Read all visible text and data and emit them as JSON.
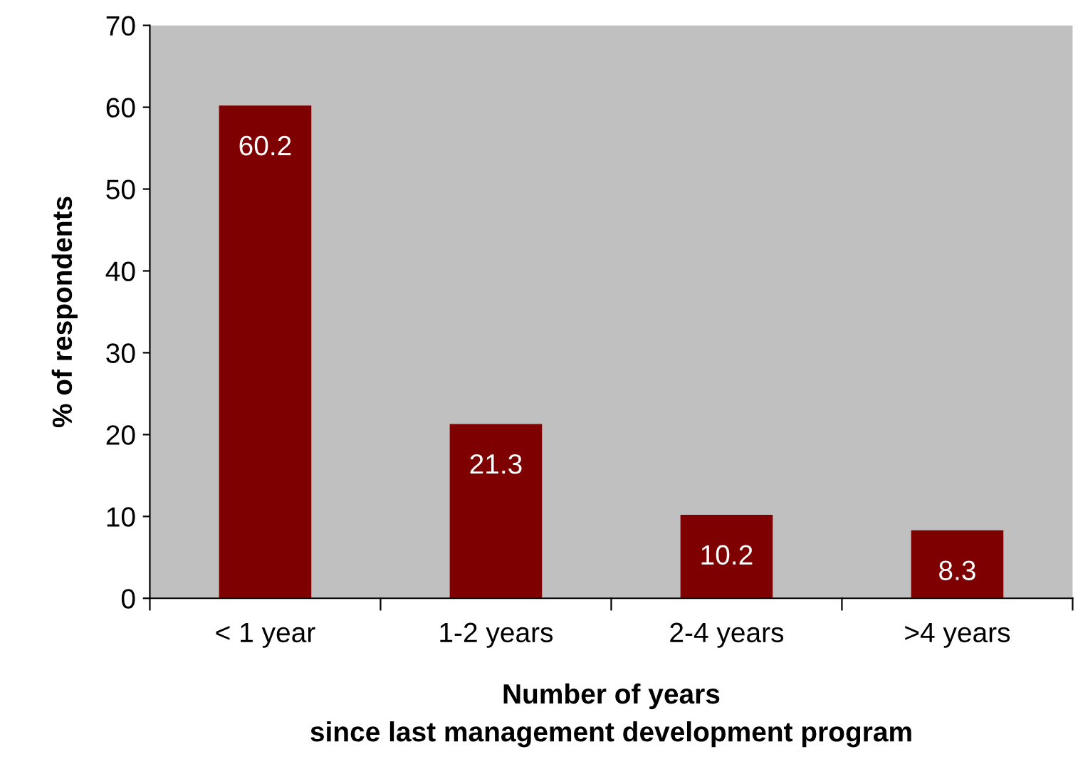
{
  "chart_data": {
    "type": "bar",
    "categories": [
      "< 1 year",
      "1-2 years",
      "2-4 years",
      ">4 years"
    ],
    "values": [
      60.2,
      21.3,
      10.2,
      8.3
    ],
    "color": "#7f0000",
    "ylabel": "% of respondents",
    "xlabel": "Number of years\nsince last management development program",
    "ylim": [
      0,
      70
    ],
    "yticks": [
      0,
      10,
      20,
      30,
      40,
      50,
      60,
      70
    ],
    "data_labels": true,
    "grid": false,
    "legend": false
  }
}
